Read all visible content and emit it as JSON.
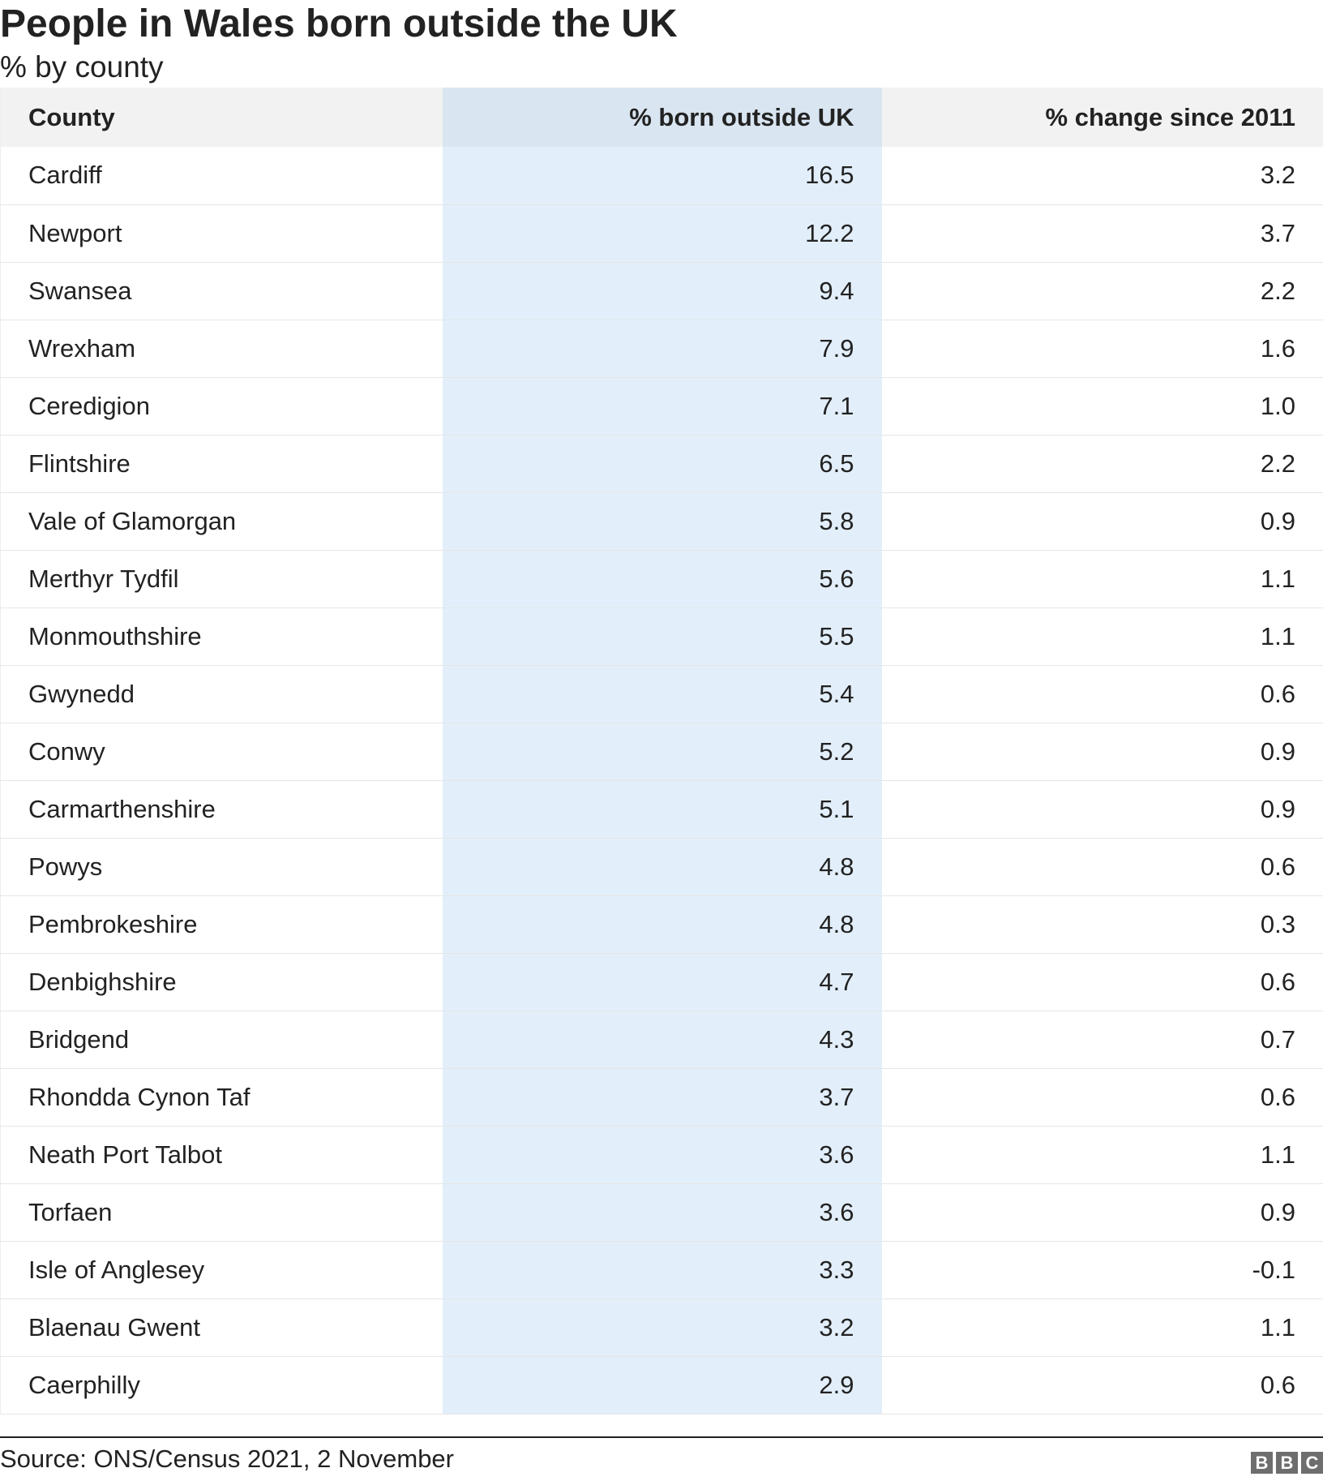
{
  "header": {
    "title": "People in Wales born outside the UK",
    "subtitle": "% by county"
  },
  "table": {
    "columns": [
      "County",
      "% born outside UK",
      "% change since 2011"
    ],
    "rows": [
      [
        "Cardiff",
        "16.5",
        "3.2"
      ],
      [
        "Newport",
        "12.2",
        "3.7"
      ],
      [
        "Swansea",
        "9.4",
        "2.2"
      ],
      [
        "Wrexham",
        "7.9",
        "1.6"
      ],
      [
        "Ceredigion",
        "7.1",
        "1.0"
      ],
      [
        "Flintshire",
        "6.5",
        "2.2"
      ],
      [
        "Vale of Glamorgan",
        "5.8",
        "0.9"
      ],
      [
        "Merthyr Tydfil",
        "5.6",
        "1.1"
      ],
      [
        "Monmouthshire",
        "5.5",
        "1.1"
      ],
      [
        "Gwynedd",
        "5.4",
        "0.6"
      ],
      [
        "Conwy",
        "5.2",
        "0.9"
      ],
      [
        "Carmarthenshire",
        "5.1",
        "0.9"
      ],
      [
        "Powys",
        "4.8",
        "0.6"
      ],
      [
        "Pembrokeshire",
        "4.8",
        "0.3"
      ],
      [
        "Denbighshire",
        "4.7",
        "0.6"
      ],
      [
        "Bridgend",
        "4.3",
        "0.7"
      ],
      [
        "Rhondda Cynon Taf",
        "3.7",
        "0.6"
      ],
      [
        "Neath Port Talbot",
        "3.6",
        "1.1"
      ],
      [
        "Torfaen",
        "3.6",
        "0.9"
      ],
      [
        "Isle of Anglesey",
        "3.3",
        "-0.1"
      ],
      [
        "Blaenau Gwent",
        "3.2",
        "1.1"
      ],
      [
        "Caerphilly",
        "2.9",
        "0.6"
      ]
    ]
  },
  "chart_data": {
    "type": "table",
    "title": "People in Wales born outside the UK",
    "subtitle": "% by county",
    "columns": [
      "County",
      "% born outside UK",
      "% change since 2011"
    ],
    "rows": [
      [
        "Cardiff",
        16.5,
        3.2
      ],
      [
        "Newport",
        12.2,
        3.7
      ],
      [
        "Swansea",
        9.4,
        2.2
      ],
      [
        "Wrexham",
        7.9,
        1.6
      ],
      [
        "Ceredigion",
        7.1,
        1.0
      ],
      [
        "Flintshire",
        6.5,
        2.2
      ],
      [
        "Vale of Glamorgan",
        5.8,
        0.9
      ],
      [
        "Merthyr Tydfil",
        5.6,
        1.1
      ],
      [
        "Monmouthshire",
        5.5,
        1.1
      ],
      [
        "Gwynedd",
        5.4,
        0.6
      ],
      [
        "Conwy",
        5.2,
        0.9
      ],
      [
        "Carmarthenshire",
        5.1,
        0.9
      ],
      [
        "Powys",
        4.8,
        0.6
      ],
      [
        "Pembrokeshire",
        4.8,
        0.3
      ],
      [
        "Denbighshire",
        4.7,
        0.6
      ],
      [
        "Bridgend",
        4.3,
        0.7
      ],
      [
        "Rhondda Cynon Taf",
        3.7,
        0.6
      ],
      [
        "Neath Port Talbot",
        3.6,
        1.1
      ],
      [
        "Torfaen",
        3.6,
        0.9
      ],
      [
        "Isle of Anglesey",
        3.3,
        -0.1
      ],
      [
        "Blaenau Gwent",
        3.2,
        1.1
      ],
      [
        "Caerphilly",
        2.9,
        0.6
      ]
    ],
    "highlighted_column": "% born outside UK"
  },
  "footer": {
    "source": "Source: ONS/Census 2021, 2 November",
    "logo_letters": [
      "B",
      "B",
      "C"
    ]
  },
  "colors": {
    "header_bg": "#f2f2f2",
    "highlight_header_bg": "#d9e5f0",
    "highlight_col_bg": "#e2effa",
    "text": "#222222",
    "logo_bg": "#6e6e6e"
  }
}
